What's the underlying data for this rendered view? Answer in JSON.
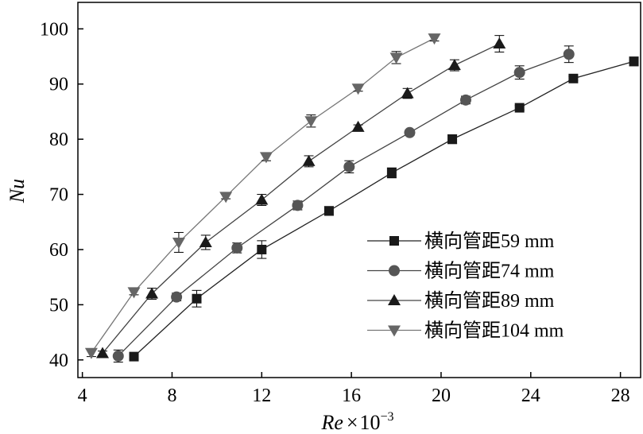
{
  "chart_data": {
    "type": "line",
    "xlabel": "Re × 10",
    "xlabel_main": "Re",
    "xlabel_times": "×",
    "xlabel_base": "10",
    "xlabel_exp": "−3",
    "ylabel": "Nu",
    "xlim": [
      3.8,
      28.9
    ],
    "ylim": [
      36.8,
      104.8
    ],
    "xticks": [
      4,
      8,
      12,
      16,
      20,
      24,
      28
    ],
    "yticks": [
      40,
      50,
      60,
      70,
      80,
      90,
      100
    ],
    "grid": false,
    "legend_position": "bottom-right",
    "series": [
      {
        "name": "横向管距59 mm",
        "marker": "square",
        "color": "#222222",
        "markerColor": "#1a1a1a",
        "x": [
          6.3,
          9.1,
          12.0,
          15.0,
          17.8,
          20.5,
          23.5,
          25.9,
          28.6
        ],
        "y": [
          40.6,
          51.1,
          60.0,
          67.0,
          73.9,
          80.0,
          85.7,
          91.0,
          94.1
        ],
        "err": [
          0.4,
          1.5,
          1.6,
          0.8,
          0.9,
          0.8,
          0.4,
          0.4,
          0.8
        ]
      },
      {
        "name": "横向管距74 mm",
        "marker": "circle",
        "color": "#444444",
        "markerColor": "#555555",
        "x": [
          5.6,
          8.2,
          10.9,
          13.6,
          15.9,
          18.6,
          21.1,
          23.5,
          25.7
        ],
        "y": [
          40.7,
          51.4,
          60.3,
          68.0,
          75.0,
          81.2,
          87.1,
          92.1,
          95.4
        ],
        "err": [
          1.1,
          0.7,
          0.9,
          0.8,
          1.1,
          0.5,
          0.7,
          1.2,
          1.5
        ]
      },
      {
        "name": "横向管距89 mm",
        "marker": "triangle-up",
        "color": "#444444",
        "markerColor": "#1a1a1a",
        "x": [
          4.9,
          7.1,
          9.5,
          12.0,
          14.1,
          16.3,
          18.5,
          20.6,
          22.6
        ],
        "y": [
          41.2,
          52.0,
          61.3,
          69.0,
          76.0,
          82.2,
          88.3,
          93.4,
          97.3
        ],
        "err": [
          0.4,
          1.0,
          1.3,
          1.0,
          1.0,
          0.4,
          0.9,
          1.0,
          1.5
        ]
      },
      {
        "name": "横向管距104 mm",
        "marker": "triangle-down",
        "color": "#777777",
        "markerColor": "#666666",
        "x": [
          4.4,
          6.3,
          8.3,
          10.4,
          12.2,
          14.2,
          16.3,
          18.0,
          19.7
        ],
        "y": [
          41.3,
          52.3,
          61.3,
          69.6,
          76.8,
          83.3,
          89.2,
          94.8,
          98.3
        ],
        "err": [
          0.7,
          0.5,
          1.8,
          0.4,
          0.7,
          1.1,
          0.5,
          1.1,
          0.5
        ]
      }
    ]
  }
}
